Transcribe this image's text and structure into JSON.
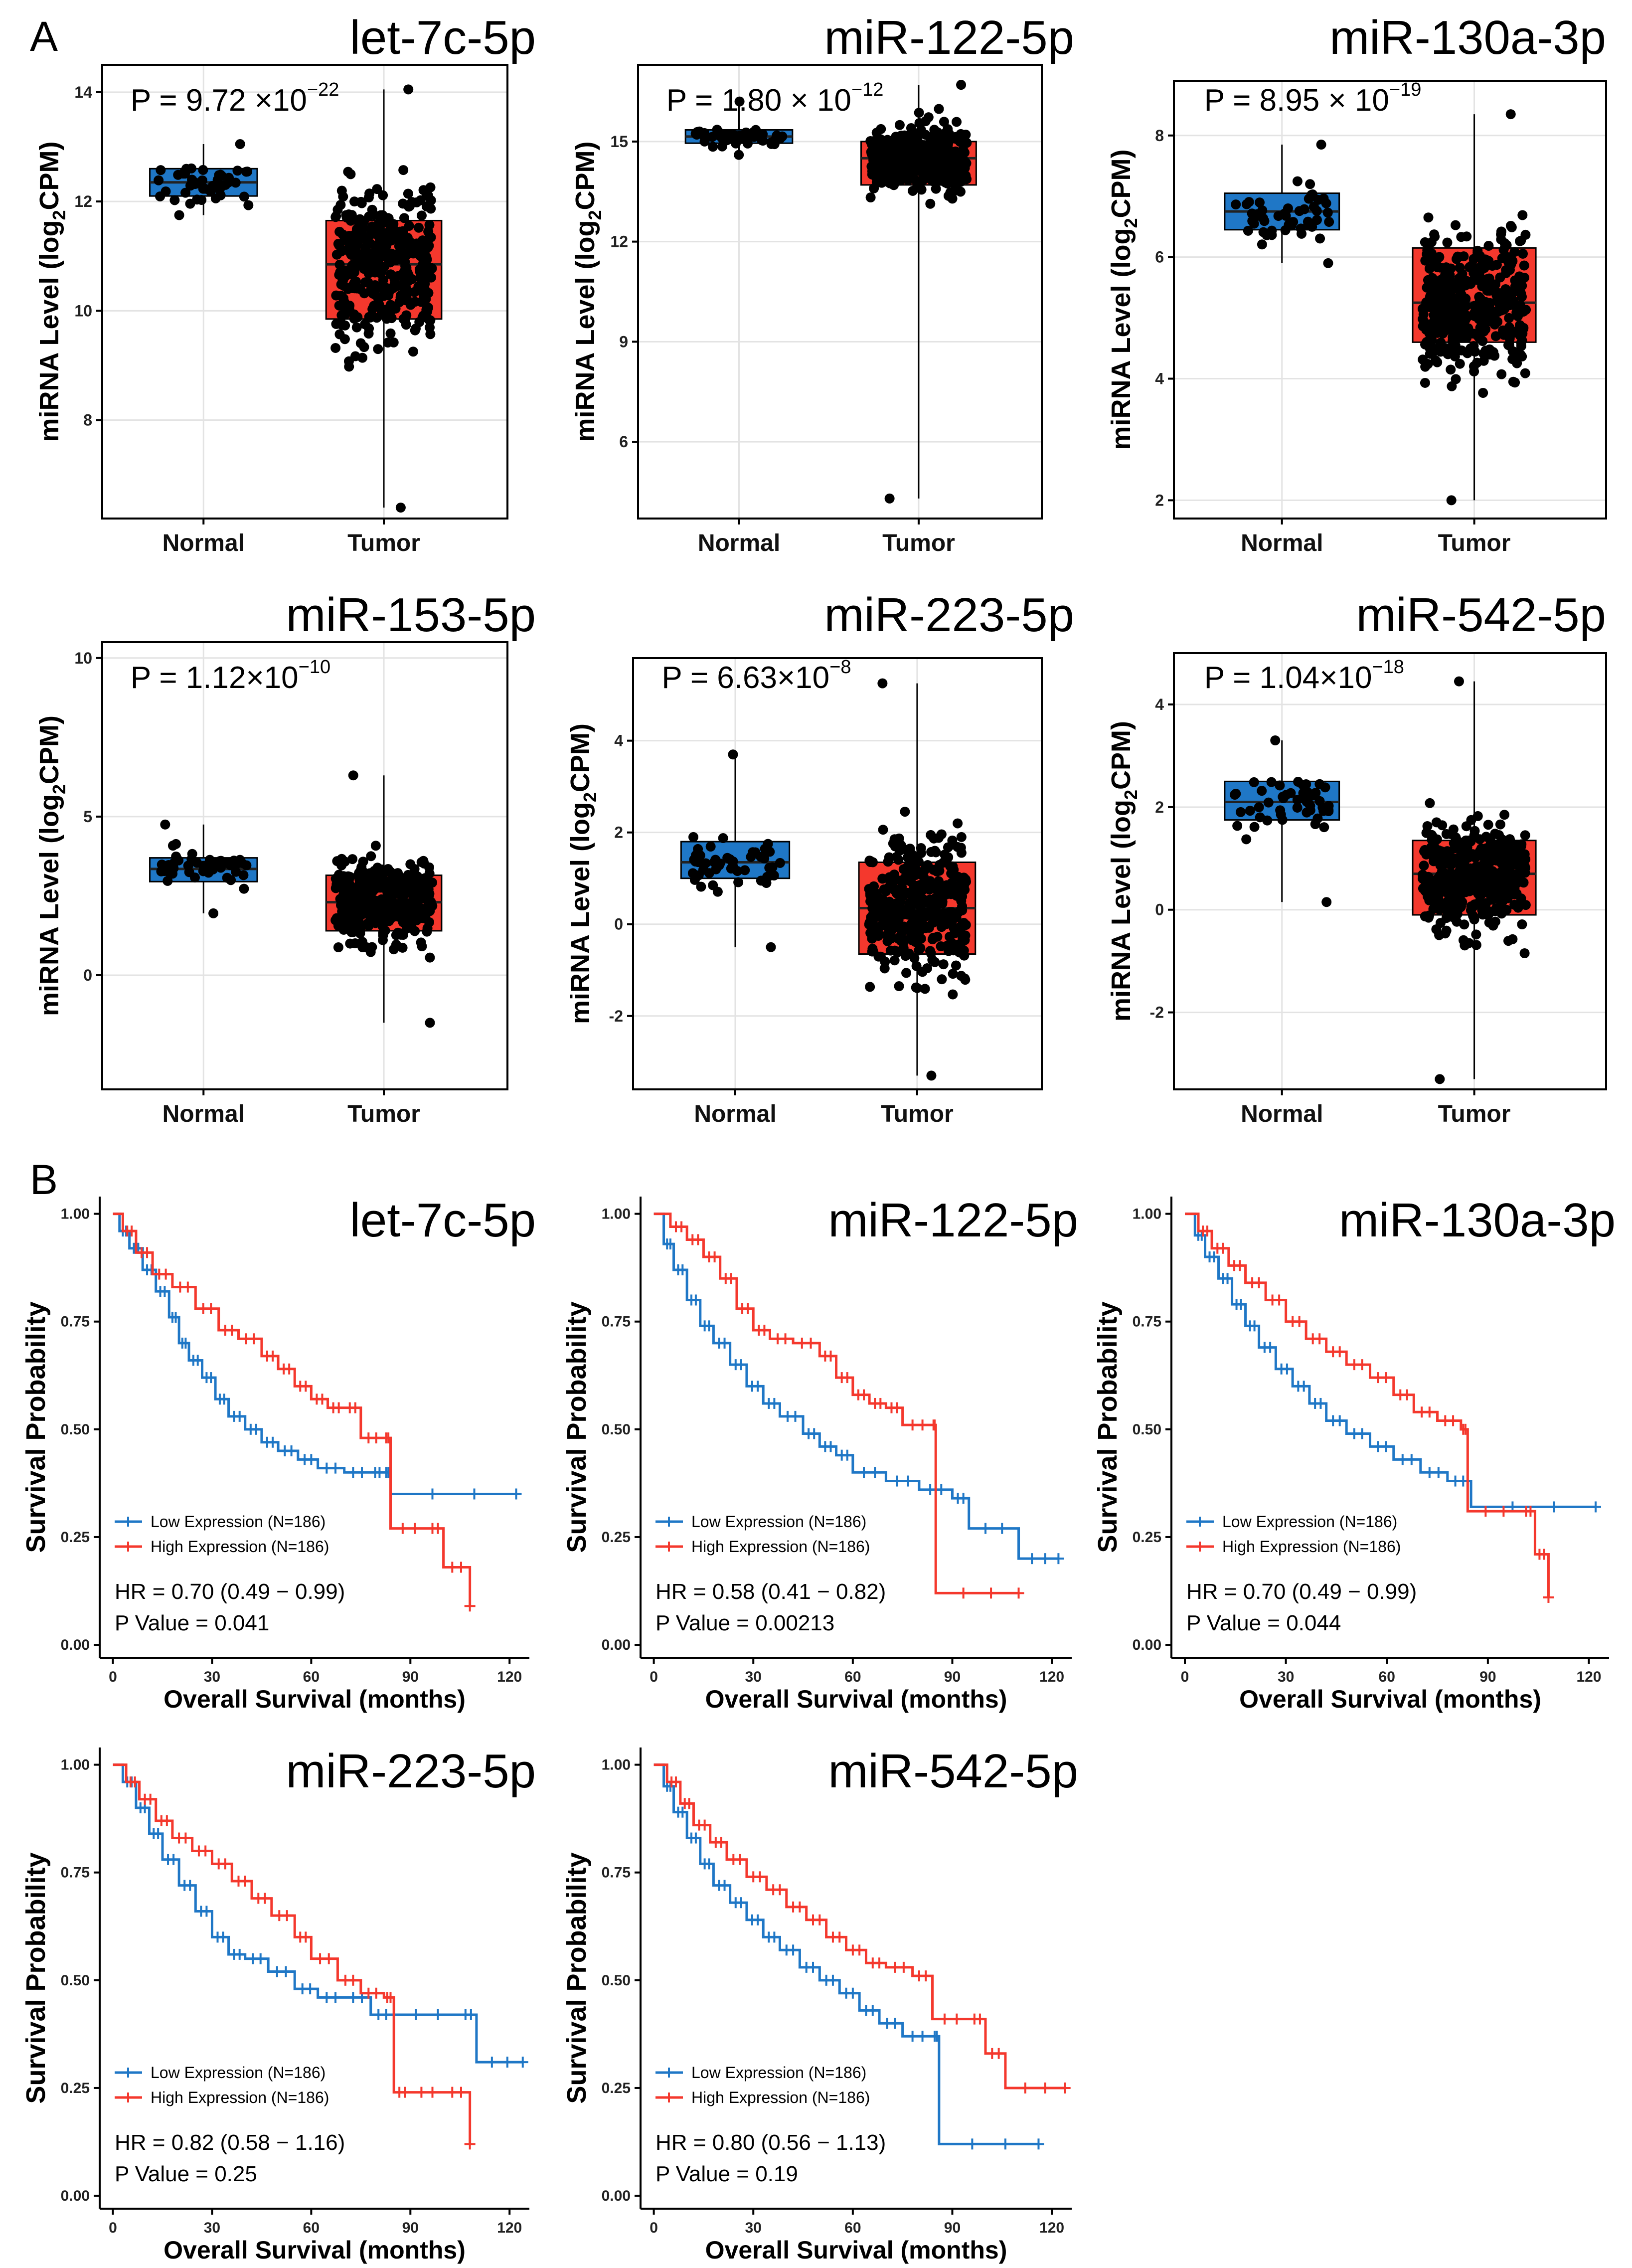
{
  "panel_labels": [
    "A",
    "B"
  ],
  "colors": {
    "normal": "#1f77c6",
    "tumor": "#f4382d",
    "low": "#1f77c6",
    "high": "#f4382d",
    "grid": "#e3e3e3",
    "frame": "#000000"
  },
  "chart_data": [
    {
      "type": "box",
      "title": "let-7c-5p",
      "xlabel": "",
      "ylabel": "miRNA Level (log2CPM)",
      "ylabel_main": "miRNA Level (log",
      "ylabel_sub": "2",
      "ylabel_tail": "CPM)",
      "categories": [
        "Normal",
        "Tumor"
      ],
      "ylim": [
        6.2,
        14.5
      ],
      "yticks": [
        8,
        10,
        12,
        14
      ],
      "p_value": {
        "prefix": "P = 9.72 ×10",
        "exp": "−22"
      },
      "groups": [
        {
          "name": "Normal",
          "q1": 12.1,
          "median": 12.35,
          "q3": 12.6,
          "min": 11.75,
          "max": 13.05,
          "n": 46
        },
        {
          "name": "Tumor",
          "q1": 9.85,
          "median": 10.85,
          "q3": 11.65,
          "min": 6.4,
          "max": 14.05,
          "n": 372
        }
      ]
    },
    {
      "type": "box",
      "title": "miR-122-5p",
      "xlabel": "",
      "ylabel": "miRNA Level (log2CPM)",
      "ylabel_main": "miRNA Level (log",
      "ylabel_sub": "2",
      "ylabel_tail": "CPM)",
      "categories": [
        "Normal",
        "Tumor"
      ],
      "ylim": [
        3.7,
        17.3
      ],
      "yticks": [
        6,
        9,
        12,
        15
      ],
      "p_value": {
        "prefix": "P = 1.80 × 10",
        "exp": "−12"
      },
      "groups": [
        {
          "name": "Normal",
          "q1": 14.95,
          "median": 15.15,
          "q3": 15.35,
          "min": 14.6,
          "max": 16.2,
          "n": 50
        },
        {
          "name": "Tumor",
          "q1": 13.7,
          "median": 14.5,
          "q3": 15.0,
          "min": 4.3,
          "max": 16.7,
          "n": 372
        }
      ]
    },
    {
      "type": "box",
      "title": "miR-130a-3p",
      "xlabel": "",
      "ylabel": "miRNA Level (log2CPM)",
      "ylabel_main": "miRNA Level (log",
      "ylabel_sub": "2",
      "ylabel_tail": "CPM)",
      "categories": [
        "Normal",
        "Tumor"
      ],
      "ylim": [
        1.7,
        8.9
      ],
      "yticks": [
        2,
        4,
        6,
        8
      ],
      "p_value": {
        "prefix": "P = 8.95 × 10",
        "exp": "−19"
      },
      "groups": [
        {
          "name": "Normal",
          "q1": 6.45,
          "median": 6.75,
          "q3": 7.05,
          "min": 5.9,
          "max": 7.85,
          "n": 50
        },
        {
          "name": "Tumor",
          "q1": 4.6,
          "median": 5.25,
          "q3": 6.15,
          "min": 2.0,
          "max": 8.35,
          "n": 372
        }
      ]
    },
    {
      "type": "box",
      "title": "miR-153-5p",
      "xlabel": "",
      "ylabel": "miRNA Level (log2CPM)",
      "ylabel_main": "miRNA Level (log",
      "ylabel_sub": "2",
      "ylabel_tail": "CPM)",
      "categories": [
        "Normal",
        "Tumor"
      ],
      "ylim": [
        -3.6,
        10.5
      ],
      "yticks": [
        0,
        5,
        10
      ],
      "p_value": {
        "prefix": "P = 1.12×10",
        "exp": "−10"
      },
      "groups": [
        {
          "name": "Normal",
          "q1": 2.95,
          "median": 3.35,
          "q3": 3.7,
          "min": 1.95,
          "max": 4.75,
          "n": 50
        },
        {
          "name": "Tumor",
          "q1": 1.4,
          "median": 2.3,
          "q3": 3.15,
          "min": -1.5,
          "max": 6.3,
          "n": 372
        }
      ]
    },
    {
      "type": "box",
      "title": "miR-223-5p",
      "xlabel": "",
      "ylabel": "miRNA Level (log2CPM)",
      "ylabel_main": "miRNA Level (log",
      "ylabel_sub": "2",
      "ylabel_tail": "CPM)",
      "categories": [
        "Normal",
        "Tumor"
      ],
      "ylim": [
        -3.6,
        5.8
      ],
      "yticks": [
        -2,
        0,
        2,
        4
      ],
      "p_value": {
        "prefix": "P = 6.63×10",
        "exp": "−8"
      },
      "groups": [
        {
          "name": "Normal",
          "q1": 1.0,
          "median": 1.35,
          "q3": 1.8,
          "min": -0.5,
          "max": 3.7,
          "n": 50
        },
        {
          "name": "Tumor",
          "q1": -0.65,
          "median": 0.35,
          "q3": 1.35,
          "min": -3.3,
          "max": 5.25,
          "n": 372
        }
      ]
    },
    {
      "type": "box",
      "title": "miR-542-5p",
      "xlabel": "",
      "ylabel": "miRNA Level (log2CPM)",
      "ylabel_main": "miRNA Level (log",
      "ylabel_sub": "2",
      "ylabel_tail": "CPM)",
      "categories": [
        "Normal",
        "Tumor"
      ],
      "ylim": [
        -3.5,
        5.0
      ],
      "yticks": [
        -2,
        0,
        2,
        4
      ],
      "p_value": {
        "prefix": "P = 1.04×10",
        "exp": "−18"
      },
      "groups": [
        {
          "name": "Normal",
          "q1": 1.75,
          "median": 2.1,
          "q3": 2.5,
          "min": 0.15,
          "max": 3.3,
          "n": 50
        },
        {
          "name": "Tumor",
          "q1": -0.1,
          "median": 0.7,
          "q3": 1.35,
          "min": -3.3,
          "max": 4.45,
          "n": 372
        }
      ]
    },
    {
      "type": "line",
      "subtype": "kaplan-meier",
      "title": "let-7c-5p",
      "xlabel": "Overall Survival (months)",
      "ylabel": "Survival Probability",
      "xlim": [
        -4,
        126
      ],
      "ylim": [
        -0.03,
        1.04
      ],
      "xticks": [
        0,
        30,
        60,
        90,
        120
      ],
      "yticks": [
        "0.00",
        "0.25",
        "0.50",
        "0.75",
        "1.00"
      ],
      "hr_text": "HR = 0.70 (0.49 − 0.99)",
      "p_text": "P Value = 0.041",
      "series": [
        {
          "name": "Low Expression (N=186)",
          "x": [
            0,
            2,
            5,
            9,
            13,
            17,
            20,
            23,
            27,
            31,
            35,
            40,
            45,
            50,
            56,
            62,
            70,
            78,
            82,
            84,
            122
          ],
          "y": [
            1.0,
            0.96,
            0.92,
            0.87,
            0.82,
            0.76,
            0.7,
            0.66,
            0.62,
            0.57,
            0.53,
            0.5,
            0.47,
            0.45,
            0.43,
            0.41,
            0.4,
            0.4,
            0.4,
            0.35,
            0.35
          ]
        },
        {
          "name": "High Expression (N=186)",
          "x": [
            0,
            3,
            7,
            12,
            18,
            25,
            32,
            38,
            45,
            50,
            55,
            60,
            65,
            70,
            75,
            82,
            84,
            95,
            100,
            108
          ],
          "y": [
            1.0,
            0.96,
            0.91,
            0.86,
            0.83,
            0.78,
            0.73,
            0.71,
            0.67,
            0.64,
            0.6,
            0.57,
            0.55,
            0.55,
            0.48,
            0.48,
            0.27,
            0.27,
            0.18,
            0.09
          ]
        }
      ]
    },
    {
      "type": "line",
      "subtype": "kaplan-meier",
      "title": "miR-122-5p",
      "xlabel": "Overall Survival (months)",
      "ylabel": "Survival Probability",
      "xlim": [
        -4,
        126
      ],
      "ylim": [
        -0.03,
        1.04
      ],
      "xticks": [
        0,
        30,
        60,
        90,
        120
      ],
      "yticks": [
        "0.00",
        "0.25",
        "0.50",
        "0.75",
        "1.00"
      ],
      "hr_text": "HR = 0.58 (0.41 − 0.82)",
      "p_text": "P Value = 0.00213",
      "series": [
        {
          "name": "Low Expression (N=186)",
          "x": [
            0,
            3,
            6,
            10,
            14,
            18,
            23,
            28,
            33,
            38,
            45,
            50,
            55,
            60,
            70,
            80,
            90,
            95,
            110,
            122
          ],
          "y": [
            1.0,
            0.93,
            0.87,
            0.8,
            0.74,
            0.7,
            0.65,
            0.6,
            0.56,
            0.53,
            0.49,
            0.46,
            0.44,
            0.4,
            0.38,
            0.36,
            0.34,
            0.27,
            0.2,
            0.2
          ]
        },
        {
          "name": "High Expression (N=186)",
          "x": [
            0,
            5,
            10,
            15,
            20,
            25,
            30,
            35,
            42,
            50,
            55,
            60,
            65,
            70,
            75,
            84,
            85,
            110
          ],
          "y": [
            1.0,
            0.97,
            0.94,
            0.9,
            0.85,
            0.78,
            0.73,
            0.71,
            0.7,
            0.67,
            0.62,
            0.58,
            0.56,
            0.55,
            0.51,
            0.51,
            0.12,
            0.12
          ]
        }
      ]
    },
    {
      "type": "line",
      "subtype": "kaplan-meier",
      "title": "miR-130a-3p",
      "xlabel": "Overall Survival (months)",
      "ylabel": "Survival Probability",
      "xlim": [
        -4,
        126
      ],
      "ylim": [
        -0.03,
        1.04
      ],
      "xticks": [
        0,
        30,
        60,
        90,
        120
      ],
      "yticks": [
        "0.00",
        "0.25",
        "0.50",
        "0.75",
        "1.00"
      ],
      "hr_text": "HR = 0.70 (0.49 − 0.99)",
      "p_text": "P Value = 0.044",
      "series": [
        {
          "name": "Low Expression (N=186)",
          "x": [
            0,
            3,
            6,
            10,
            14,
            18,
            22,
            27,
            32,
            37,
            42,
            48,
            55,
            62,
            70,
            78,
            85,
            122
          ],
          "y": [
            1.0,
            0.95,
            0.9,
            0.85,
            0.79,
            0.74,
            0.69,
            0.64,
            0.6,
            0.56,
            0.52,
            0.49,
            0.46,
            0.43,
            0.4,
            0.38,
            0.32,
            0.32
          ]
        },
        {
          "name": "High Expression (N=186)",
          "x": [
            0,
            4,
            8,
            13,
            18,
            24,
            30,
            36,
            42,
            48,
            55,
            62,
            68,
            75,
            82,
            84,
            100,
            104,
            108
          ],
          "y": [
            1.0,
            0.96,
            0.92,
            0.88,
            0.84,
            0.8,
            0.75,
            0.71,
            0.68,
            0.65,
            0.62,
            0.58,
            0.54,
            0.52,
            0.5,
            0.31,
            0.31,
            0.21,
            0.11
          ]
        }
      ]
    },
    {
      "type": "line",
      "subtype": "kaplan-meier",
      "title": "miR-223-5p",
      "xlabel": "Overall Survival (months)",
      "ylabel": "Survival Probability",
      "xlim": [
        -4,
        126
      ],
      "ylim": [
        -0.03,
        1.04
      ],
      "xticks": [
        0,
        30,
        60,
        90,
        120
      ],
      "yticks": [
        "0.00",
        "0.25",
        "0.50",
        "0.75",
        "1.00"
      ],
      "hr_text": "HR = 0.82 (0.58 − 1.16)",
      "p_text": "P Value = 0.25",
      "series": [
        {
          "name": "Low Expression (N=186)",
          "x": [
            0,
            3,
            7,
            11,
            15,
            20,
            25,
            30,
            35,
            40,
            47,
            55,
            62,
            70,
            78,
            85,
            105,
            110,
            124
          ],
          "y": [
            1.0,
            0.96,
            0.9,
            0.84,
            0.78,
            0.72,
            0.66,
            0.6,
            0.56,
            0.55,
            0.52,
            0.48,
            0.46,
            0.46,
            0.42,
            0.42,
            0.42,
            0.31,
            0.31
          ]
        },
        {
          "name": "High Expression (N=186)",
          "x": [
            0,
            4,
            8,
            13,
            18,
            24,
            30,
            36,
            42,
            48,
            55,
            60,
            68,
            75,
            82,
            85,
            90,
            100,
            108
          ],
          "y": [
            1.0,
            0.96,
            0.92,
            0.87,
            0.83,
            0.8,
            0.77,
            0.73,
            0.69,
            0.65,
            0.6,
            0.55,
            0.5,
            0.47,
            0.46,
            0.24,
            0.24,
            0.24,
            0.12
          ]
        }
      ]
    },
    {
      "type": "line",
      "subtype": "kaplan-meier",
      "title": "miR-542-5p",
      "xlabel": "Overall Survival (months)",
      "ylabel": "Survival Probability",
      "xlim": [
        -4,
        126
      ],
      "ylim": [
        -0.03,
        1.04
      ],
      "xticks": [
        0,
        30,
        60,
        90,
        120
      ],
      "yticks": [
        "0.00",
        "0.25",
        "0.50",
        "0.75",
        "1.00"
      ],
      "hr_text": "HR = 0.80 (0.56 − 1.13)",
      "p_text": "P Value = 0.19",
      "series": [
        {
          "name": "Low Expression (N=186)",
          "x": [
            0,
            3,
            6,
            10,
            14,
            18,
            23,
            28,
            33,
            38,
            44,
            50,
            56,
            62,
            68,
            75,
            84,
            86,
            116
          ],
          "y": [
            1.0,
            0.95,
            0.89,
            0.83,
            0.77,
            0.72,
            0.68,
            0.64,
            0.6,
            0.57,
            0.53,
            0.5,
            0.47,
            0.43,
            0.4,
            0.37,
            0.37,
            0.12,
            0.12
          ]
        },
        {
          "name": "High Expression (N=186)",
          "x": [
            0,
            4,
            8,
            12,
            17,
            22,
            28,
            34,
            40,
            46,
            52,
            58,
            64,
            70,
            78,
            84,
            95,
            100,
            106,
            124
          ],
          "y": [
            1.0,
            0.96,
            0.91,
            0.86,
            0.82,
            0.78,
            0.74,
            0.71,
            0.67,
            0.64,
            0.6,
            0.57,
            0.54,
            0.53,
            0.51,
            0.41,
            0.41,
            0.33,
            0.25,
            0.25
          ]
        }
      ]
    }
  ]
}
